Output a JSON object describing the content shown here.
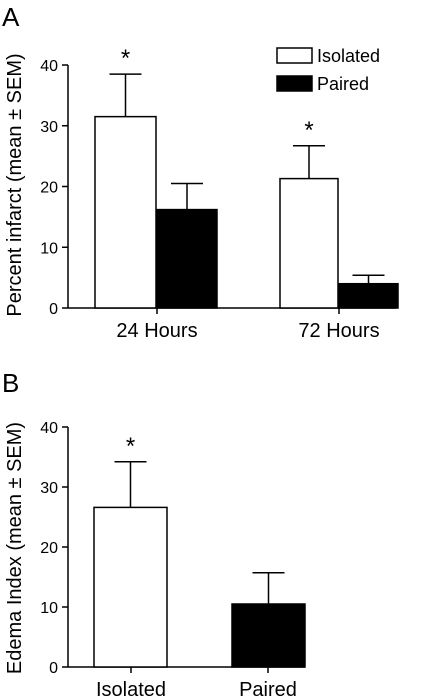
{
  "chart_data": [
    {
      "panel": "A",
      "type": "bar",
      "ylabel": "Percent infarct (mean ± SEM)",
      "xlabel": "",
      "ylim": [
        0,
        40
      ],
      "yticks": [
        0,
        10,
        20,
        30,
        40
      ],
      "categories": [
        "24 Hours",
        "72 Hours"
      ],
      "series": [
        {
          "name": "Isolated",
          "fill": "#ffffff",
          "values": [
            31.5,
            21.3
          ],
          "sem": [
            7.0,
            5.4
          ]
        },
        {
          "name": "Paired",
          "fill": "#000000",
          "values": [
            16.2,
            4.0
          ],
          "sem": [
            4.3,
            1.4
          ]
        }
      ],
      "significance": [
        {
          "category": 0,
          "series": 0,
          "mark": "*"
        },
        {
          "category": 1,
          "series": 0,
          "mark": "*"
        }
      ],
      "legend": "top-right"
    },
    {
      "panel": "B",
      "type": "bar",
      "ylabel": "Edema Index (mean ± SEM)",
      "xlabel": "",
      "ylim": [
        0,
        40
      ],
      "yticks": [
        0,
        10,
        20,
        30,
        40
      ],
      "categories": [
        "Isolated",
        "Paired"
      ],
      "series": [
        {
          "name": "",
          "values": [
            26.6,
            10.5
          ],
          "sem": [
            7.6,
            5.2
          ],
          "fills": [
            "#ffffff",
            "#000000"
          ]
        }
      ],
      "significance": [
        {
          "category": 0,
          "series": 0,
          "mark": "*"
        }
      ]
    }
  ]
}
